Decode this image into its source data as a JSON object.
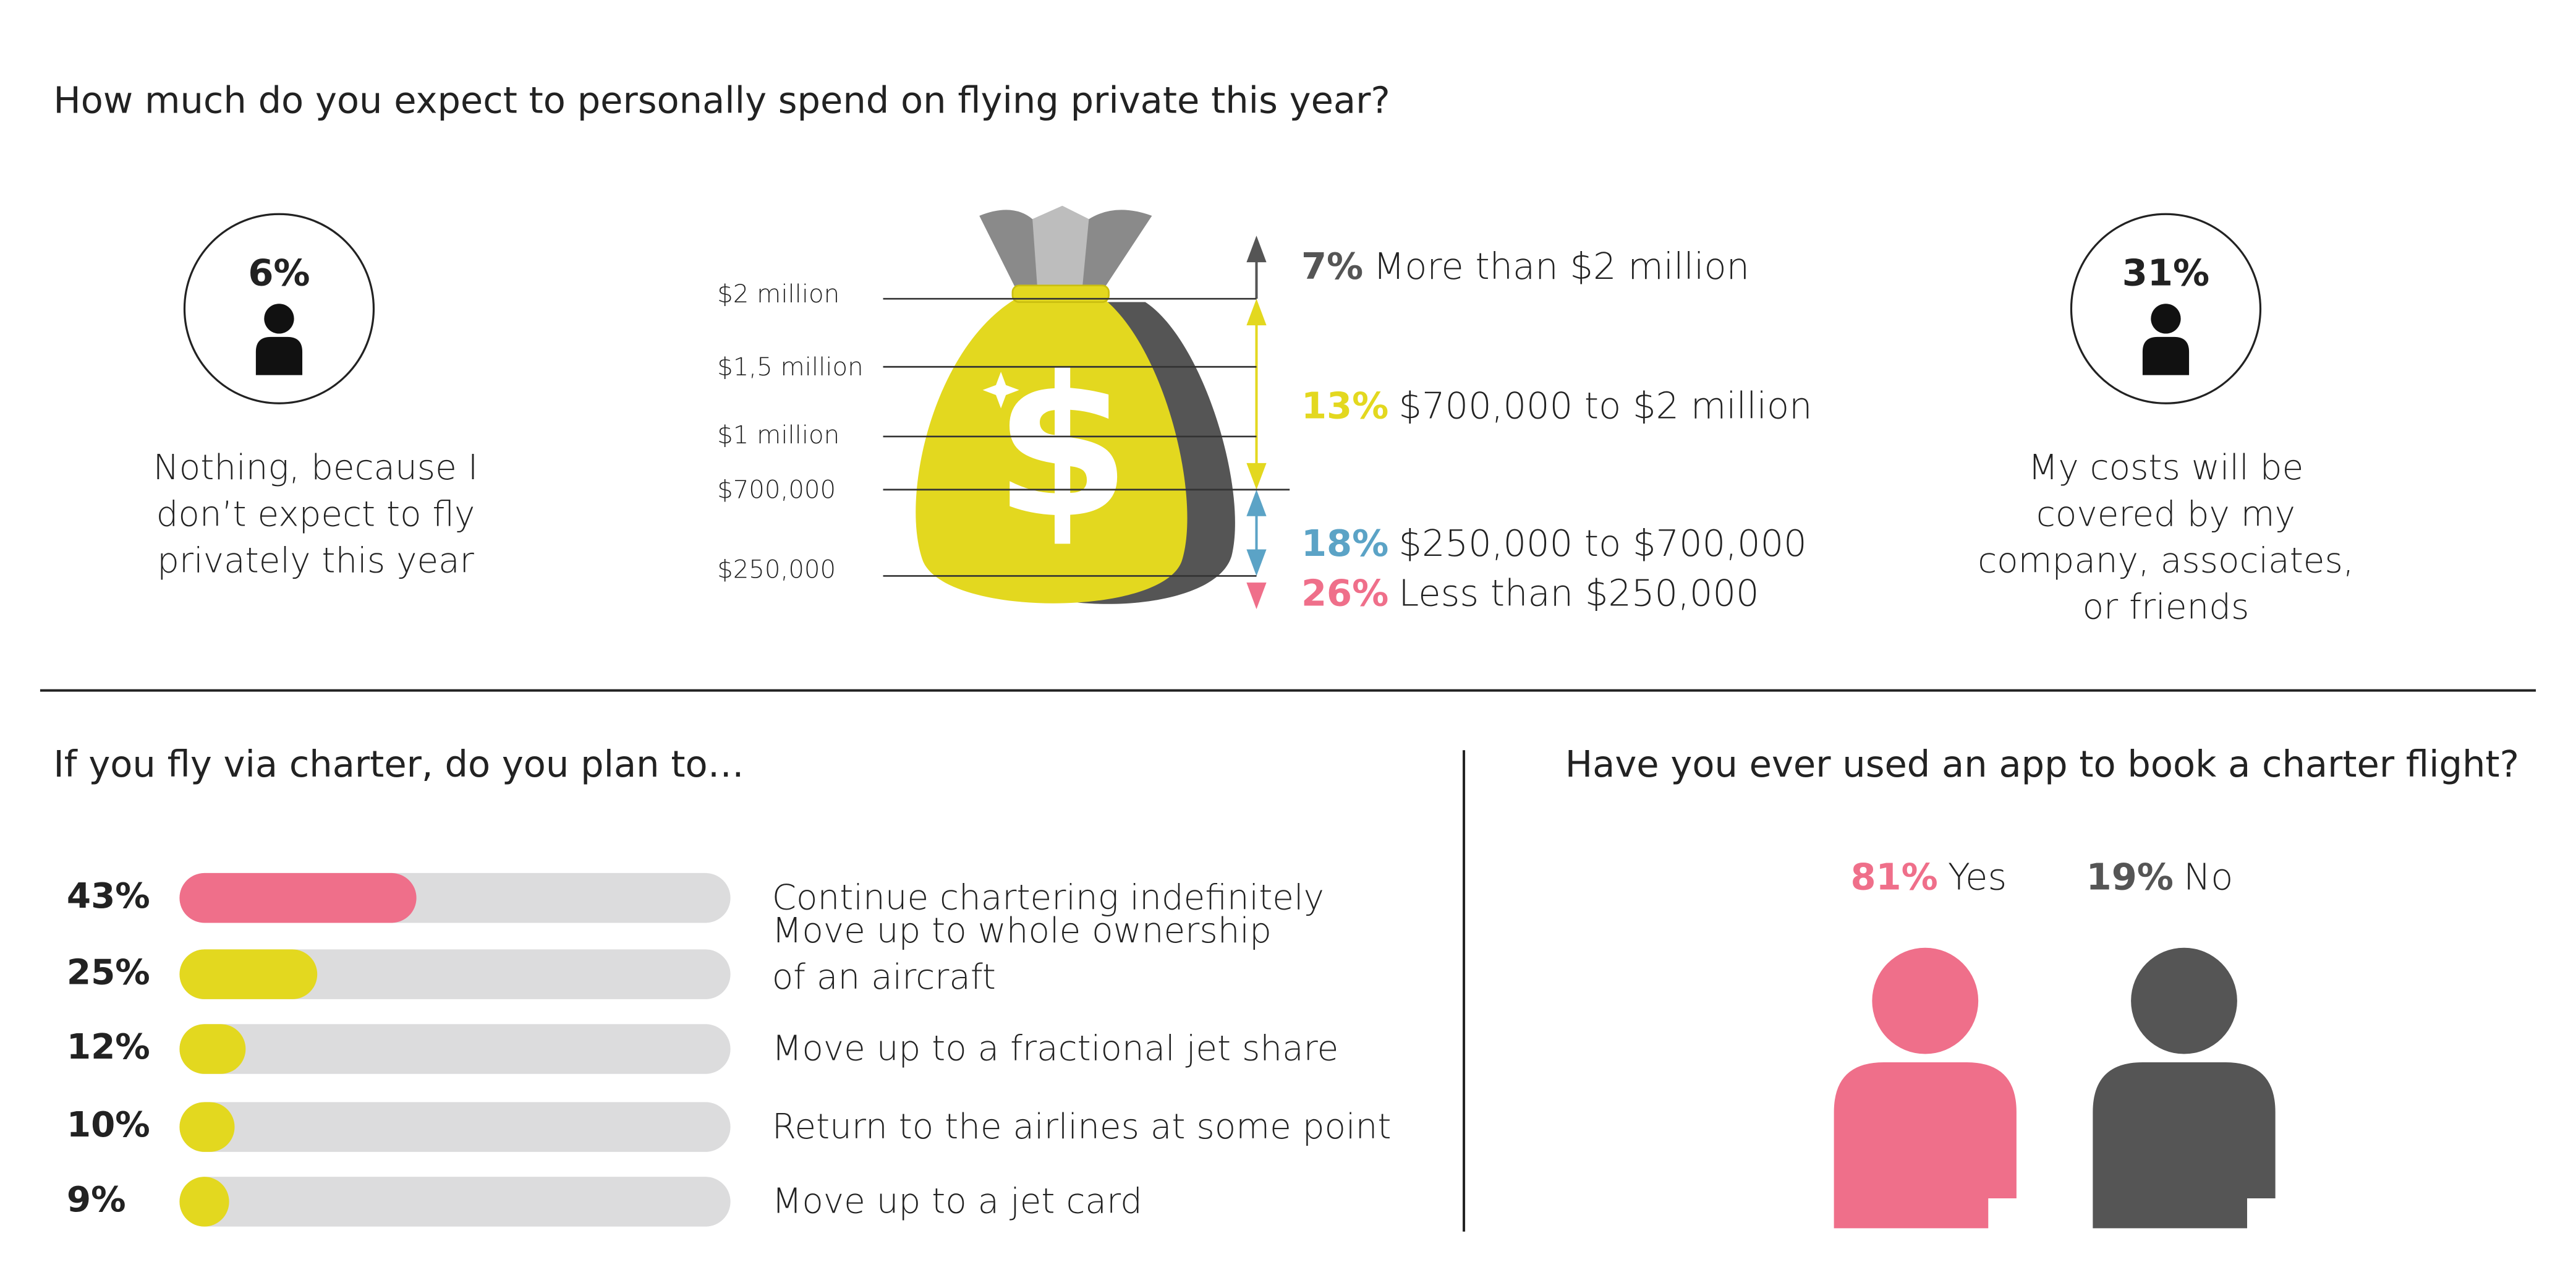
{
  "spend": {
    "title": "How much do you expect to personally spend on flying private this year?",
    "nothing": {
      "value": 6,
      "value_label": "6%",
      "lines": [
        "Nothing, because I",
        "don’t expect to fly",
        "privately this year"
      ]
    },
    "covered": {
      "value": 31,
      "value_label": "31%",
      "lines": [
        "My costs will be",
        "covered by my",
        "company, associates,",
        "or friends"
      ]
    },
    "scale_labels": [
      "$2 million",
      "$1,5 million",
      "$1 million",
      "$700,000",
      "$250,000"
    ],
    "ranges": [
      {
        "value": 7,
        "value_label": "7%",
        "label": "More than $2 million",
        "color": "#555555"
      },
      {
        "value": 13,
        "value_label": "13%",
        "label": "$700,000 to $2 million",
        "color": "#e3d81f"
      },
      {
        "value": 18,
        "value_label": "18%",
        "label": "$250,000 to $700,000",
        "color": "#5ba3c6"
      },
      {
        "value": 26,
        "value_label": "26%",
        "label": "Less than $250,000",
        "color": "#ef6f8a"
      }
    ]
  },
  "charter": {
    "title": "If you fly via charter, do you plan to…",
    "xlim": [
      0,
      100
    ],
    "items": [
      {
        "value": 43,
        "value_label": "43%",
        "lines": [
          "Continue chartering indefinitely"
        ],
        "color": "#ef6f8a"
      },
      {
        "value": 25,
        "value_label": "25%",
        "lines": [
          "Move up to whole ownership",
          "of an aircraft"
        ],
        "color": "#e3d81f"
      },
      {
        "value": 12,
        "value_label": "12%",
        "lines": [
          "Move up to a fractional jet share"
        ],
        "color": "#e3d81f"
      },
      {
        "value": 10,
        "value_label": "10%",
        "lines": [
          "Return to the airlines at some point"
        ],
        "color": "#e3d81f"
      },
      {
        "value": 9,
        "value_label": "9%",
        "lines": [
          "Move up to a jet card"
        ],
        "color": "#e3d81f"
      }
    ]
  },
  "app": {
    "title": "Have you ever used an app to book a charter flight?",
    "answers": [
      {
        "value": 81,
        "value_label": "81%",
        "label": "Yes",
        "color": "#ef6f8a"
      },
      {
        "value": 19,
        "value_label": "19%",
        "label": "No",
        "color": "#555555"
      }
    ]
  }
}
